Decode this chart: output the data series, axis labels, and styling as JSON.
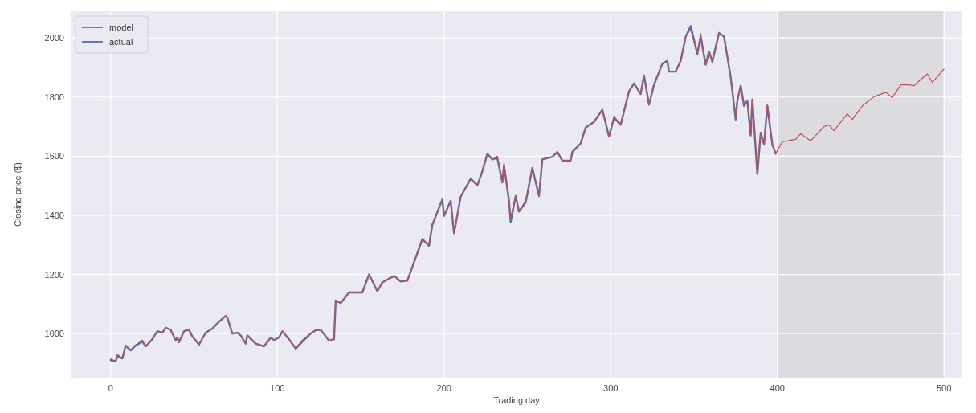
{
  "chart_data": {
    "type": "line",
    "xlabel": "Trading day",
    "ylabel": "Closing price ($)",
    "xlim": [
      -24,
      511
    ],
    "ylim": [
      851,
      2090
    ],
    "xticks": [
      0,
      100,
      200,
      300,
      400,
      500
    ],
    "yticks": [
      1000,
      1200,
      1400,
      1600,
      1800,
      2000
    ],
    "grid": true,
    "legend": "top left",
    "line_style": "solid",
    "marker": "none",
    "bands": [
      {
        "axis": "x",
        "from": 400,
        "to": 500,
        "color": "#dcdce0"
      }
    ],
    "series": [
      {
        "name": "model",
        "color": "#c44e52",
        "x": [
          0,
          3,
          4,
          7,
          9,
          12,
          15,
          19,
          21,
          25,
          28,
          31,
          33,
          36,
          39,
          40,
          41,
          44,
          47,
          49,
          53,
          57,
          61,
          65,
          69,
          70,
          73,
          76,
          78,
          81,
          82,
          87,
          92,
          96,
          98,
          101,
          103,
          107,
          111,
          115,
          120,
          123,
          126,
          131,
          134,
          135,
          138,
          143,
          151,
          155,
          160,
          163,
          170,
          174,
          178,
          183,
          187,
          191,
          193,
          199,
          200,
          204,
          206,
          210,
          216,
          220,
          223,
          226,
          229,
          232,
          235,
          236,
          239,
          240,
          243,
          245,
          249,
          253,
          257,
          259,
          265,
          268,
          271,
          276,
          277,
          282,
          285,
          290,
          295,
          299,
          302,
          306,
          311,
          314,
          318,
          320,
          323,
          326,
          331,
          334,
          335,
          339,
          342,
          345,
          348,
          352,
          354,
          357,
          359,
          361,
          365,
          368,
          372,
          375,
          376,
          378,
          380,
          382,
          384,
          385,
          388,
          390,
          392,
          394,
          397,
          399,
          403,
          411,
          414,
          420,
          428,
          431,
          434,
          442,
          445,
          451,
          458,
          465,
          469,
          474,
          479,
          482,
          486,
          490,
          493,
          500
        ],
        "values": [
          915,
          906,
          930,
          916,
          959,
          943,
          960,
          978,
          957,
          981,
          1008,
          1003,
          1020,
          1013,
          976,
          987,
          975,
          1008,
          1013,
          990,
          963,
          1003,
          1017,
          1040,
          1062,
          1054,
          1000,
          1003,
          994,
          966,
          994,
          966,
          957,
          986,
          978,
          987,
          1008,
          981,
          949,
          978,
          1000,
          1011,
          1013,
          976,
          981,
          1112,
          1103,
          1139,
          1139,
          1200,
          1143,
          1173,
          1195,
          1176,
          1179,
          1257,
          1322,
          1297,
          1368,
          1454,
          1398,
          1449,
          1339,
          1463,
          1524,
          1501,
          1549,
          1608,
          1589,
          1600,
          1511,
          1580,
          1449,
          1390,
          1465,
          1413,
          1450,
          1560,
          1465,
          1589,
          1598,
          1614,
          1585,
          1585,
          1614,
          1643,
          1697,
          1716,
          1757,
          1666,
          1735,
          1706,
          1819,
          1846,
          1810,
          1873,
          1774,
          1845,
          1913,
          1922,
          1886,
          1886,
          1922,
          2004,
          2030,
          1946,
          2015,
          1909,
          1954,
          1919,
          2017,
          2004,
          1868,
          1730,
          1787,
          1838,
          1775,
          1787,
          1670,
          1792,
          1545,
          1679,
          1639,
          1775,
          1639,
          1608,
          1649,
          1657,
          1676,
          1652,
          1700,
          1706,
          1686,
          1743,
          1724,
          1770,
          1801,
          1816,
          1798,
          1841,
          1841,
          1838,
          1859,
          1878,
          1849,
          1895
        ]
      },
      {
        "name": "actual",
        "color": "#4c72b0",
        "x": [
          0,
          3,
          4,
          7,
          9,
          12,
          15,
          19,
          21,
          25,
          28,
          31,
          33,
          36,
          39,
          40,
          41,
          44,
          47,
          49,
          53,
          57,
          61,
          65,
          69,
          70,
          73,
          76,
          78,
          81,
          82,
          87,
          92,
          96,
          98,
          101,
          103,
          107,
          111,
          115,
          120,
          123,
          126,
          131,
          134,
          135,
          138,
          143,
          151,
          155,
          160,
          163,
          170,
          174,
          178,
          183,
          187,
          191,
          193,
          199,
          200,
          204,
          206,
          210,
          216,
          220,
          223,
          226,
          229,
          232,
          235,
          236,
          239,
          240,
          243,
          245,
          249,
          253,
          257,
          259,
          265,
          268,
          271,
          276,
          277,
          282,
          285,
          290,
          295,
          299,
          302,
          306,
          311,
          314,
          318,
          320,
          323,
          326,
          331,
          334,
          335,
          339,
          342,
          345,
          348,
          352,
          354,
          357,
          359,
          361,
          365,
          368,
          372,
          375,
          376,
          378,
          380,
          382,
          384,
          385,
          388,
          390,
          392,
          394,
          397,
          399
        ],
        "values": [
          910,
          906,
          924,
          916,
          959,
          943,
          960,
          973,
          957,
          981,
          1008,
          1003,
          1020,
          1013,
          976,
          987,
          971,
          1008,
          1013,
          990,
          963,
          1003,
          1017,
          1040,
          1059,
          1054,
          1000,
          1003,
          994,
          966,
          994,
          966,
          957,
          986,
          978,
          987,
          1008,
          981,
          949,
          973,
          1000,
          1011,
          1013,
          976,
          981,
          1112,
          1103,
          1139,
          1139,
          1200,
          1143,
          1173,
          1195,
          1176,
          1179,
          1257,
          1319,
          1297,
          1368,
          1454,
          1398,
          1449,
          1339,
          1463,
          1524,
          1501,
          1549,
          1608,
          1589,
          1594,
          1511,
          1568,
          1449,
          1378,
          1465,
          1413,
          1443,
          1560,
          1465,
          1589,
          1598,
          1614,
          1585,
          1585,
          1614,
          1643,
          1697,
          1716,
          1757,
          1666,
          1730,
          1706,
          1819,
          1846,
          1810,
          1873,
          1774,
          1841,
          1913,
          1922,
          1886,
          1886,
          1922,
          2004,
          2040,
          1946,
          2004,
          1909,
          1954,
          1919,
          2017,
          2004,
          1868,
          1724,
          1787,
          1838,
          1770,
          1787,
          1670,
          1792,
          1540,
          1679,
          1639,
          1770,
          1639,
          1608
        ]
      }
    ]
  }
}
